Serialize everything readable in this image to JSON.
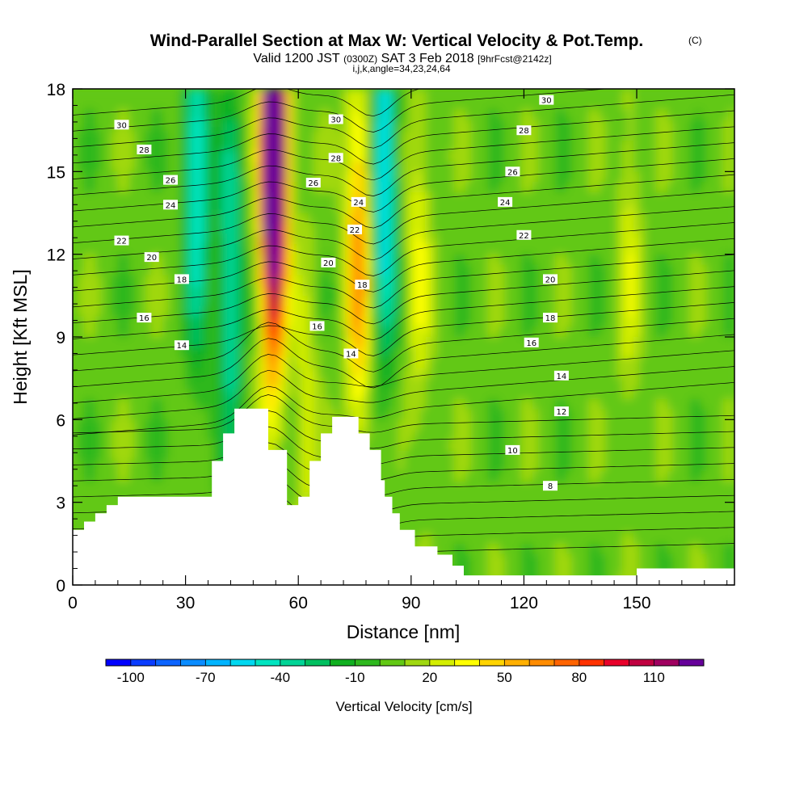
{
  "header": {
    "title": "Wind-Parallel Section at Max W: Vertical Velocity & Pot.Temp.",
    "copyright": "(C)",
    "valid_prefix": "Valid 1200 JST",
    "valid_utc": "(0300Z)",
    "valid_date": "SAT 3 Feb 2018",
    "forecast": "[9hrFcst@2142z]",
    "indices": "i,j,k,angle=34,23,24,64"
  },
  "chart_data": {
    "type": "heatmap",
    "title": "Wind-Parallel Section at Max W: Vertical Velocity & Pot.Temp.",
    "xlabel": "Distance [nm]",
    "ylabel": "Height [Kft MSL]",
    "xlim": [
      0,
      176
    ],
    "ylim": [
      0,
      18
    ],
    "x_ticks": [
      0,
      30,
      60,
      90,
      120,
      150
    ],
    "y_ticks": [
      0,
      3,
      6,
      9,
      12,
      15,
      18
    ],
    "grid": false,
    "colorbar": {
      "label": "Vertical Velocity [cm/s]",
      "tick_values": [
        -100,
        -70,
        -40,
        -10,
        20,
        50,
        80,
        110
      ],
      "levels": [
        -110,
        -100,
        -90,
        -80,
        -70,
        -60,
        -50,
        -40,
        -30,
        -20,
        -10,
        0,
        10,
        20,
        30,
        40,
        50,
        60,
        70,
        80,
        90,
        100,
        110,
        120
      ],
      "colors": [
        "#0000ff",
        "#0a3cff",
        "#0c64ff",
        "#0a8cff",
        "#00b4ff",
        "#00d8f0",
        "#00e4c0",
        "#00d496",
        "#00c060",
        "#10b020",
        "#2eb81e",
        "#62c814",
        "#a0d810",
        "#d4ee00",
        "#ffff00",
        "#ffd400",
        "#ffb000",
        "#ff8c00",
        "#ff6400",
        "#ff3200",
        "#e8002a",
        "#c00040",
        "#a00060",
        "#66009a"
      ]
    },
    "vertical_velocity_features": [
      {
        "x": 33,
        "z": 15,
        "w": -60
      },
      {
        "x": 42,
        "z": 11,
        "w": -50
      },
      {
        "x": 53,
        "z": 14,
        "w": 100
      },
      {
        "x": 54,
        "z": 17,
        "w": 110
      },
      {
        "x": 62,
        "z": 6,
        "w": 20
      },
      {
        "x": 76,
        "z": 12,
        "w": 60
      },
      {
        "x": 83,
        "z": 15,
        "w": -70
      },
      {
        "x": 92,
        "z": 12,
        "w": 25
      },
      {
        "x": 148,
        "z": 12,
        "w": 20
      }
    ],
    "terrain_profile": {
      "x": [
        0,
        3,
        6,
        9,
        12,
        18,
        34,
        37,
        40,
        43,
        51,
        52,
        55,
        57,
        60,
        62,
        63,
        66,
        69,
        74,
        76,
        79,
        82,
        83,
        85,
        87,
        91,
        95,
        97,
        101,
        104,
        110,
        140,
        146,
        150,
        176
      ],
      "height": [
        2.0,
        2.3,
        2.6,
        2.9,
        3.2,
        3.2,
        3.2,
        4.5,
        5.5,
        6.4,
        6.4,
        4.9,
        4.9,
        2.9,
        3.2,
        3.2,
        4.5,
        5.5,
        6.1,
        6.1,
        5.5,
        4.9,
        3.8,
        3.2,
        2.6,
        2.0,
        1.4,
        1.4,
        1.1,
        0.7,
        0.35,
        0.35,
        0.35,
        0.35,
        0.6,
        0.6
      ]
    },
    "potential_temperature_labels": [
      {
        "text": "30",
        "x": 13,
        "z": 16.7
      },
      {
        "text": "28",
        "x": 19,
        "z": 15.8
      },
      {
        "text": "26",
        "x": 26,
        "z": 14.7
      },
      {
        "text": "24",
        "x": 26,
        "z": 13.8
      },
      {
        "text": "22",
        "x": 13,
        "z": 12.5
      },
      {
        "text": "20",
        "x": 21,
        "z": 11.9
      },
      {
        "text": "18",
        "x": 29,
        "z": 11.1
      },
      {
        "text": "16",
        "x": 19,
        "z": 9.7
      },
      {
        "text": "14",
        "x": 29,
        "z": 8.7
      },
      {
        "text": "30",
        "x": 70,
        "z": 16.9
      },
      {
        "text": "28",
        "x": 70,
        "z": 15.5
      },
      {
        "text": "26",
        "x": 64,
        "z": 14.6
      },
      {
        "text": "24",
        "x": 76,
        "z": 13.9
      },
      {
        "text": "22",
        "x": 75,
        "z": 12.9
      },
      {
        "text": "20",
        "x": 68,
        "z": 11.7
      },
      {
        "text": "18",
        "x": 77,
        "z": 10.9
      },
      {
        "text": "16",
        "x": 65,
        "z": 9.4
      },
      {
        "text": "14",
        "x": 74,
        "z": 8.4
      },
      {
        "text": "30",
        "x": 126,
        "z": 17.6
      },
      {
        "text": "28",
        "x": 120,
        "z": 16.5
      },
      {
        "text": "26",
        "x": 117,
        "z": 15.0
      },
      {
        "text": "24",
        "x": 115,
        "z": 13.9
      },
      {
        "text": "22",
        "x": 120,
        "z": 12.7
      },
      {
        "text": "20",
        "x": 127,
        "z": 11.1
      },
      {
        "text": "18",
        "x": 127,
        "z": 9.7
      },
      {
        "text": "16",
        "x": 122,
        "z": 8.8
      },
      {
        "text": "14",
        "x": 130,
        "z": 7.6
      },
      {
        "text": "12",
        "x": 130,
        "z": 6.3
      },
      {
        "text": "10",
        "x": 117,
        "z": 4.9
      },
      {
        "text": "8",
        "x": 127,
        "z": 3.6
      }
    ]
  }
}
